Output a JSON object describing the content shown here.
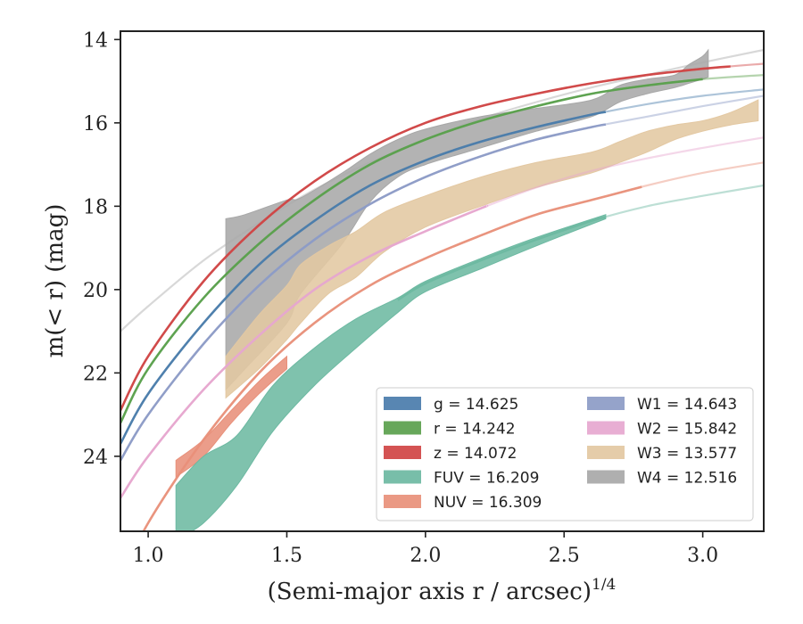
{
  "chart_data": {
    "type": "line",
    "xlabel": "(Semi-major axis r / arcsec)",
    "xlabel_sup": "1/4",
    "ylabel": "m(< r) (mag)",
    "xlim": [
      0.9,
      3.22
    ],
    "ylim": [
      25.8,
      13.8
    ],
    "y_inverted": true,
    "grid": false,
    "legend_position": "lower-right",
    "x_ticks": [
      {
        "value": 1.0,
        "label": "1.0"
      },
      {
        "value": 1.5,
        "label": "1.5"
      },
      {
        "value": 2.0,
        "label": "2.0"
      },
      {
        "value": 2.5,
        "label": "2.5"
      },
      {
        "value": 3.0,
        "label": "3.0"
      }
    ],
    "y_ticks": [
      {
        "value": 14,
        "label": "14"
      },
      {
        "value": 16,
        "label": "16"
      },
      {
        "value": 18,
        "label": "18"
      },
      {
        "value": 20,
        "label": "20"
      },
      {
        "value": 22,
        "label": "22"
      },
      {
        "value": 24,
        "label": "24"
      }
    ],
    "legend_columns": [
      [
        "g",
        "r",
        "z",
        "FUV",
        "NUV"
      ],
      [
        "W1",
        "W2",
        "W3",
        "W4"
      ]
    ],
    "series": [
      {
        "id": "W4",
        "name": "W4",
        "legend_label": "W4 = 12.516",
        "color": "#a8a8a8",
        "model_x": [
          0.9,
          1.0,
          1.2,
          1.4,
          1.6,
          1.8,
          2.0,
          2.2,
          2.4,
          2.6,
          2.8,
          3.0,
          3.22
        ],
        "model_y": [
          21.0,
          20.4,
          19.3,
          18.4,
          17.6,
          16.95,
          16.4,
          15.9,
          15.5,
          15.15,
          14.85,
          14.55,
          14.25
        ],
        "band_x": [
          1.28,
          1.35,
          1.5,
          1.55,
          1.7,
          1.8,
          1.9,
          2.0,
          2.2,
          2.4,
          2.6,
          2.7,
          2.8,
          2.9,
          2.95,
          3.0,
          3.02
        ],
        "band_upper": [
          18.3,
          18.2,
          17.85,
          17.8,
          17.2,
          16.75,
          16.4,
          16.15,
          15.85,
          15.65,
          15.45,
          15.1,
          14.95,
          14.85,
          14.6,
          14.4,
          14.25
        ],
        "band_lower": [
          22.4,
          21.9,
          20.8,
          20.1,
          18.9,
          17.9,
          17.3,
          17.0,
          16.6,
          16.2,
          15.85,
          15.5,
          15.3,
          15.15,
          15.05,
          14.95,
          14.9
        ]
      },
      {
        "id": "W3",
        "name": "W3",
        "legend_label": "W3 = 13.577",
        "color": "#e3c8a2",
        "band_x": [
          1.28,
          1.4,
          1.5,
          1.55,
          1.65,
          1.75,
          1.85,
          2.0,
          2.2,
          2.4,
          2.6,
          2.7,
          2.8,
          2.9,
          3.0,
          3.1,
          3.2
        ],
        "band_upper": [
          21.6,
          20.6,
          19.9,
          19.4,
          18.95,
          18.6,
          18.15,
          17.75,
          17.3,
          16.95,
          16.7,
          16.45,
          16.2,
          16.05,
          15.95,
          15.75,
          15.45
        ],
        "band_lower": [
          22.6,
          21.9,
          21.2,
          20.8,
          20.1,
          19.7,
          19.1,
          18.5,
          18.0,
          17.55,
          17.2,
          16.95,
          16.7,
          16.4,
          16.2,
          16.05,
          15.95
        ]
      },
      {
        "id": "W2",
        "name": "W2",
        "legend_label": "W2 = 15.842",
        "color": "#e6a7cf",
        "model_x": [
          0.9,
          1.0,
          1.2,
          1.4,
          1.6,
          1.8,
          2.0,
          2.2,
          2.4,
          2.6,
          2.8,
          3.0,
          3.22
        ],
        "model_y": [
          25.0,
          24.0,
          22.4,
          21.1,
          20.0,
          19.2,
          18.6,
          18.05,
          17.55,
          17.15,
          16.85,
          16.6,
          16.35
        ],
        "solid_until": 2.22
      },
      {
        "id": "W1",
        "name": "W1",
        "legend_label": "W1 = 14.643",
        "color": "#8c9bc6",
        "model_x": [
          0.9,
          1.0,
          1.2,
          1.4,
          1.6,
          1.8,
          2.0,
          2.2,
          2.4,
          2.6,
          2.8,
          3.0,
          3.22
        ],
        "model_y": [
          24.1,
          23.0,
          21.3,
          19.9,
          18.8,
          17.95,
          17.3,
          16.8,
          16.4,
          16.1,
          15.85,
          15.6,
          15.35
        ],
        "solid_until": 2.65
      },
      {
        "id": "NUV",
        "name": "NUV",
        "legend_label": "NUV = 16.309",
        "color": "#e8907a",
        "model_x": [
          0.9,
          1.0,
          1.2,
          1.4,
          1.6,
          1.8,
          2.0,
          2.2,
          2.4,
          2.6,
          2.8,
          3.0,
          3.22
        ],
        "model_y": [
          27.0,
          25.6,
          23.6,
          22.0,
          20.8,
          19.9,
          19.25,
          18.7,
          18.2,
          17.85,
          17.5,
          17.2,
          16.95
        ],
        "solid_until": 2.78,
        "band_x": [
          1.1,
          1.2,
          1.3,
          1.4,
          1.5
        ],
        "band_upper": [
          24.1,
          23.6,
          22.9,
          22.2,
          21.6
        ],
        "band_lower": [
          24.5,
          24.0,
          23.2,
          22.5,
          21.9
        ]
      },
      {
        "id": "FUV",
        "name": "FUV",
        "legend_label": "FUV = 16.209",
        "color": "#6db9a2",
        "model_x": [
          1.9,
          2.0,
          2.2,
          2.4,
          2.6,
          2.8,
          3.0,
          3.22
        ],
        "model_y": [
          20.25,
          19.85,
          19.3,
          18.8,
          18.35,
          18.0,
          17.75,
          17.5
        ],
        "solid_until": 2.65,
        "band_x": [
          1.1,
          1.2,
          1.32,
          1.45,
          1.6,
          1.75,
          1.9,
          2.0,
          2.2,
          2.4,
          2.65
        ],
        "band_upper": [
          24.7,
          24.0,
          23.5,
          22.3,
          21.4,
          20.7,
          20.2,
          19.8,
          19.25,
          18.75,
          18.2
        ],
        "band_lower": [
          26.0,
          25.6,
          24.7,
          23.4,
          22.3,
          21.4,
          20.55,
          20.05,
          19.5,
          18.95,
          18.3
        ]
      },
      {
        "id": "g",
        "name": "g",
        "legend_label": "g = 14.625",
        "color": "#4a7cab",
        "model_x": [
          0.9,
          1.0,
          1.2,
          1.4,
          1.6,
          1.8,
          2.0,
          2.2,
          2.4,
          2.6,
          2.8,
          3.0,
          3.22
        ],
        "model_y": [
          23.7,
          22.5,
          20.8,
          19.4,
          18.35,
          17.5,
          16.9,
          16.45,
          16.1,
          15.8,
          15.55,
          15.35,
          15.2
        ],
        "solid_until": 2.65
      },
      {
        "id": "r",
        "name": "r",
        "legend_label": "r = 14.242",
        "color": "#5aa04c",
        "model_x": [
          0.9,
          1.0,
          1.2,
          1.4,
          1.6,
          1.8,
          2.0,
          2.2,
          2.4,
          2.6,
          2.8,
          3.0,
          3.22
        ],
        "model_y": [
          23.2,
          21.9,
          20.2,
          18.9,
          17.85,
          17.0,
          16.4,
          15.95,
          15.6,
          15.3,
          15.1,
          14.95,
          14.85
        ],
        "solid_until": 3.0
      },
      {
        "id": "z",
        "name": "z",
        "legend_label": "z = 14.072",
        "color": "#d04444",
        "model_x": [
          0.9,
          1.0,
          1.2,
          1.4,
          1.6,
          1.8,
          2.0,
          2.2,
          2.4,
          2.6,
          2.8,
          3.0,
          3.22
        ],
        "model_y": [
          22.9,
          21.6,
          19.8,
          18.45,
          17.4,
          16.6,
          16.0,
          15.6,
          15.3,
          15.05,
          14.85,
          14.7,
          14.58
        ],
        "solid_until": 3.1
      }
    ]
  }
}
